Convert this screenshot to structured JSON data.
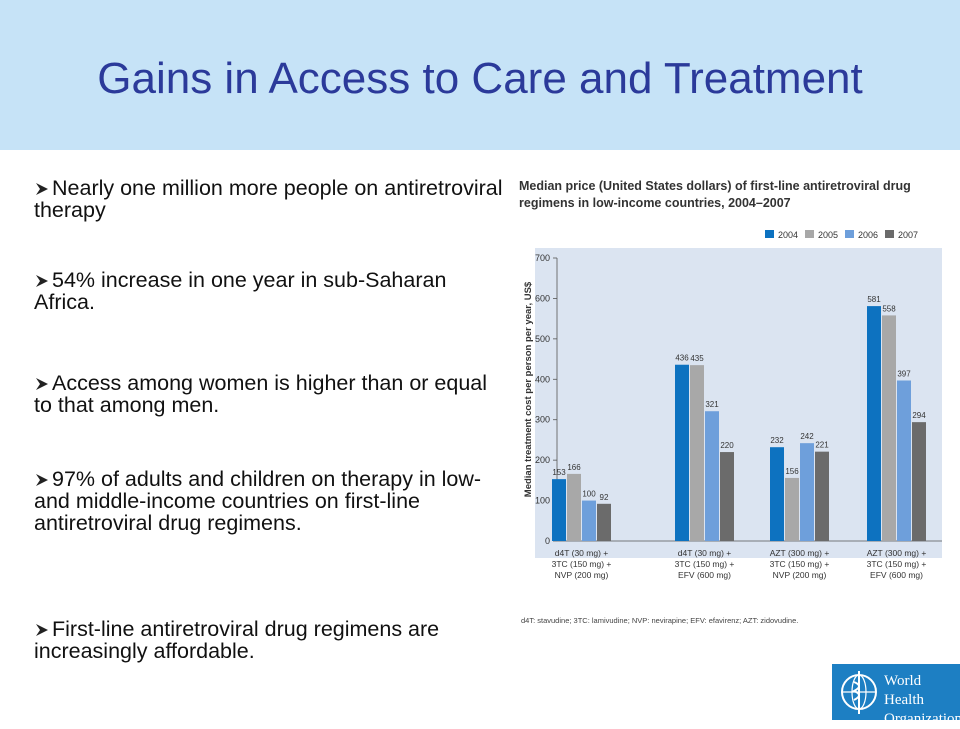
{
  "slide": {
    "title": "Gains in Access to Care and Treatment"
  },
  "bullets": [
    "Nearly one million more people on antiretroviral therapy",
    "54% increase in one year in sub-Saharan Africa.",
    "Access among women is higher than or equal to that among men.",
    "97% of adults and children on therapy in low- and middle-income countries on first-line antiretroviral drug regimens.",
    "First-line antiretroviral drug regimens are increasingly affordable."
  ],
  "colors": {
    "header_bg": "#c6e3f7",
    "title": "#2b3a9a",
    "plot_bg": "#dbe4f1",
    "series": [
      "#0d72c0",
      "#a8a8a8",
      "#6e9fdb",
      "#6b6b6b"
    ],
    "who_blue": "#1d7fc3"
  },
  "logo": {
    "text_line1": "World Health",
    "text_line2": "Organization"
  },
  "chart_data": {
    "type": "bar",
    "title": "Median price (United States dollars) of first-line antiretroviral drug regimens in low-income countries, 2004–2007",
    "ylabel": "Median treatment cost per person per year, US$",
    "ylim": [
      0,
      700
    ],
    "yticks": [
      0,
      100,
      200,
      300,
      400,
      500,
      600,
      700
    ],
    "legend_position": "top-right",
    "categories": [
      [
        "d4T (30 mg) +",
        "3TC (150 mg) +",
        "NVP (200 mg)"
      ],
      [
        "d4T (30 mg) +",
        "3TC (150 mg) +",
        "EFV (600 mg)"
      ],
      [
        "AZT (300 mg) +",
        "3TC (150 mg) +",
        "NVP (200 mg)"
      ],
      [
        "AZT (300 mg) +",
        "3TC (150 mg) +",
        "EFV (600 mg)"
      ]
    ],
    "series": [
      {
        "name": "2004",
        "values": [
          153,
          436,
          232,
          581
        ]
      },
      {
        "name": "2005",
        "values": [
          166,
          435,
          156,
          558
        ]
      },
      {
        "name": "2006",
        "values": [
          100,
          321,
          242,
          397
        ]
      },
      {
        "name": "2007",
        "values": [
          92,
          220,
          221,
          294
        ]
      }
    ],
    "footnote": "d4T: stavudine; 3TC: lamivudine; NVP: nevirapine; EFV: efavirenz; AZT: zidovudine."
  }
}
